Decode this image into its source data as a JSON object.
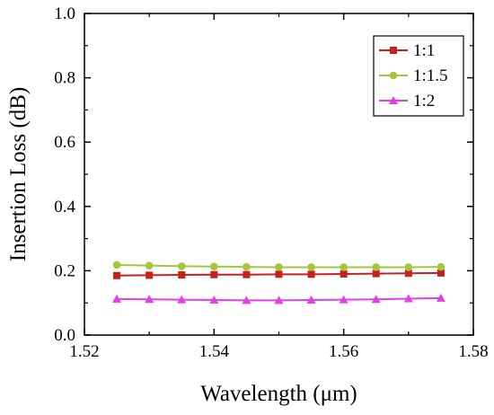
{
  "chart_data": {
    "type": "line",
    "title": "",
    "xlabel": "Wavelength (μm)",
    "ylabel": "Insertion Loss (dB)",
    "xlim": [
      1.52,
      1.58
    ],
    "ylim": [
      0.0,
      1.0
    ],
    "xticks": [
      "1.52",
      "1.54",
      "1.56",
      "1.58"
    ],
    "yticks": [
      "0.0",
      "0.2",
      "0.4",
      "0.6",
      "0.8",
      "1.0"
    ],
    "x": [
      1.525,
      1.53,
      1.535,
      1.54,
      1.545,
      1.55,
      1.555,
      1.56,
      1.565,
      1.57,
      1.575
    ],
    "legend_position": "top-right",
    "grid": false,
    "series": [
      {
        "name": "1:1",
        "color": "#c8201e",
        "marker": "square",
        "values": [
          0.185,
          0.186,
          0.187,
          0.188,
          0.188,
          0.189,
          0.189,
          0.19,
          0.191,
          0.192,
          0.193
        ]
      },
      {
        "name": "1:1.5",
        "color": "#a5c63b",
        "marker": "circle",
        "values": [
          0.218,
          0.216,
          0.214,
          0.213,
          0.212,
          0.211,
          0.211,
          0.211,
          0.211,
          0.211,
          0.212
        ]
      },
      {
        "name": "1:2",
        "color": "#e040e8",
        "marker": "triangle",
        "values": [
          0.112,
          0.111,
          0.11,
          0.109,
          0.108,
          0.108,
          0.109,
          0.11,
          0.111,
          0.113,
          0.115
        ]
      }
    ]
  }
}
